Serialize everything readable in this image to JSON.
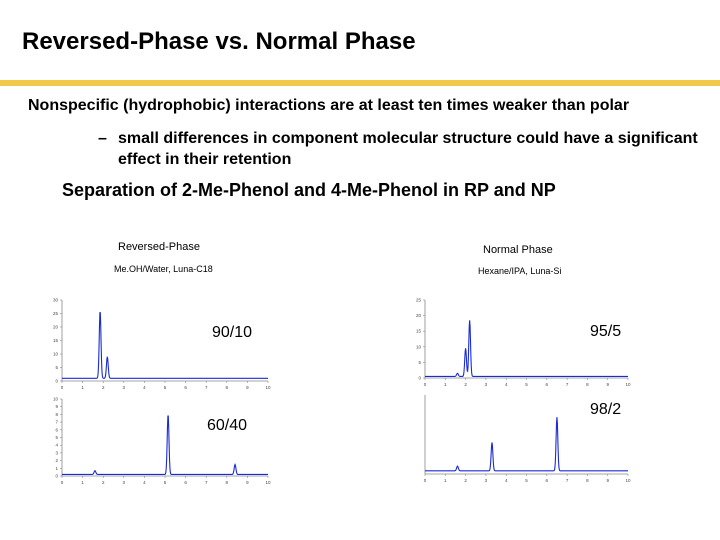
{
  "title": "Reversed-Phase vs. Normal Phase",
  "bullet": "Nonspecific (hydrophobic) interactions are at least ten times weaker than polar",
  "sub_bullet": {
    "dash": "–",
    "text": "small differences in component molecular structure could have a significant effect in their retention"
  },
  "heading": "Separation of 2-Me-Phenol and 4-Me-Phenol in RP and NP",
  "rp": {
    "label": "Reversed-Phase",
    "conditions": "Me.OH/Water, Luna-C18"
  },
  "np": {
    "label": "Normal Phase",
    "conditions": "Hexane/IPA, Luna-Si"
  },
  "ratios": {
    "rp_top": "90/10",
    "rp_bottom": "60/40",
    "np_top": "95/5",
    "np_bottom": "98/2"
  },
  "colors": {
    "accent_rule": "#f2c84b",
    "trace": "#1a2bd6"
  },
  "chart_data": [
    {
      "type": "line",
      "title": "90/10",
      "xlim": [
        0,
        10
      ],
      "ylim": [
        0,
        30
      ],
      "x_ticks": [
        0,
        1,
        2,
        3,
        4,
        5,
        6,
        7,
        8,
        9,
        10
      ],
      "y_ticks": [
        0,
        5,
        10,
        15,
        20,
        25,
        30
      ],
      "peaks": [
        {
          "x": 1.85,
          "height": 25
        },
        {
          "x": 2.2,
          "height": 8
        }
      ],
      "baseline": 1
    },
    {
      "type": "line",
      "title": "60/40",
      "xlim": [
        0,
        10
      ],
      "ylim": [
        0,
        10
      ],
      "x_ticks": [
        0,
        1,
        2,
        3,
        4,
        5,
        6,
        7,
        8,
        9,
        10
      ],
      "y_ticks": [
        0,
        1,
        2,
        3,
        4,
        5,
        6,
        7,
        8,
        9,
        10
      ],
      "peaks": [
        {
          "x": 1.6,
          "height": 0.5
        },
        {
          "x": 5.15,
          "height": 7.8
        },
        {
          "x": 8.4,
          "height": 1.3
        }
      ],
      "baseline": 0.2
    },
    {
      "type": "line",
      "title": "95/5",
      "xlim": [
        0,
        10
      ],
      "ylim": [
        0,
        25
      ],
      "x_ticks": [
        0,
        1,
        2,
        3,
        4,
        5,
        6,
        7,
        8,
        9,
        10
      ],
      "y_ticks": [
        0,
        5,
        10,
        15,
        20,
        25
      ],
      "peaks": [
        {
          "x": 1.6,
          "height": 1
        },
        {
          "x": 2.0,
          "height": 9
        },
        {
          "x": 2.2,
          "height": 18
        }
      ],
      "baseline": 0.5
    },
    {
      "type": "line",
      "title": "98/2",
      "xlim": [
        0,
        10
      ],
      "ylim": [
        0,
        10
      ],
      "x_ticks": [
        0,
        1,
        2,
        3,
        4,
        5,
        6,
        7,
        8,
        9,
        10
      ],
      "y_ticks": [],
      "peaks": [
        {
          "x": 1.6,
          "height": 0.6
        },
        {
          "x": 3.3,
          "height": 3.6
        },
        {
          "x": 6.5,
          "height": 6.8
        }
      ],
      "baseline": 0.4
    }
  ]
}
